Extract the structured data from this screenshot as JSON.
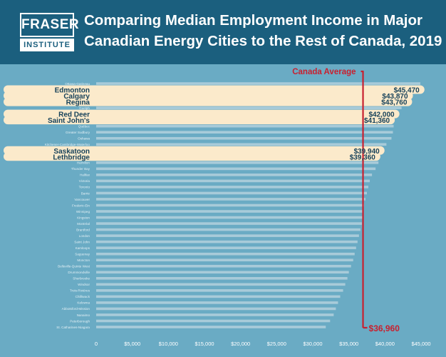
{
  "header": {
    "logo_top": "FRASER",
    "logo_bottom": "INSTITUTE",
    "title_line1": "Comparing Median Employment Income in Major",
    "title_line2": "Canadian Energy Cities to the Rest of Canada, 2019"
  },
  "colors": {
    "background": "#6aabc4",
    "header": "#1b5f7e",
    "highlight_bar": "#fbeacb",
    "plain_bar": "#a8cbd9",
    "average_line": "#c8202f",
    "value_text": "#17425a"
  },
  "chart_data": {
    "type": "bar",
    "orientation": "horizontal",
    "title": "Comparing Median Employment Income in Major Canadian Energy Cities to the Rest of Canada, 2019",
    "xlim": [
      0,
      45000
    ],
    "x_ticks": [
      "0",
      "$5,000",
      "$10,000",
      "$15,000",
      "$20,000",
      "$25,000",
      "$30,000",
      "$35,000",
      "$40,000",
      "$45,000"
    ],
    "average": {
      "label": "Canada Average",
      "value": 36960,
      "value_label": "$36,960"
    },
    "grid": false,
    "bars": [
      {
        "name": "Ottawa-Gatineau",
        "value": 44900,
        "highlight": false
      },
      {
        "name": "Edmonton",
        "value": 45470,
        "highlight": true,
        "label": "$45,470"
      },
      {
        "name": "Calgary",
        "value": 43870,
        "highlight": true,
        "label": "$43,870"
      },
      {
        "name": "Regina",
        "value": 43760,
        "highlight": true,
        "label": "$43,760"
      },
      {
        "name": "Guelph",
        "value": 42300,
        "highlight": false
      },
      {
        "name": "Red Deer",
        "value": 42000,
        "highlight": true,
        "label": "$42,000"
      },
      {
        "name": "Saint John's",
        "value": 41360,
        "highlight": true,
        "label": "$41,360"
      },
      {
        "name": "Québec",
        "value": 41200,
        "highlight": false
      },
      {
        "name": "Greater Sudbury",
        "value": 41100,
        "highlight": false
      },
      {
        "name": "Oshawa",
        "value": 40900,
        "highlight": false
      },
      {
        "name": "Kitchener-Cambridge-Waterloo",
        "value": 40200,
        "highlight": false
      },
      {
        "name": "Saskatoon",
        "value": 39940,
        "highlight": true,
        "label": "$39,940"
      },
      {
        "name": "Lethbridge",
        "value": 39360,
        "highlight": true,
        "label": "$39,360"
      },
      {
        "name": "Hamilton",
        "value": 39100,
        "highlight": false
      },
      {
        "name": "Thunder Bay",
        "value": 38700,
        "highlight": false
      },
      {
        "name": "Halifax",
        "value": 38200,
        "highlight": false
      },
      {
        "name": "Victoria",
        "value": 37900,
        "highlight": false
      },
      {
        "name": "Toronto",
        "value": 37700,
        "highlight": false
      },
      {
        "name": "Barrie",
        "value": 37500,
        "highlight": false
      },
      {
        "name": "Vancouver",
        "value": 37300,
        "highlight": false
      },
      {
        "name": "Frederic-Ein",
        "value": 37100,
        "highlight": false
      },
      {
        "name": "Winnipeg",
        "value": 37000,
        "highlight": false
      },
      {
        "name": "Kingston",
        "value": 36900,
        "highlight": false
      },
      {
        "name": "Montréal",
        "value": 36800,
        "highlight": false
      },
      {
        "name": "Brantford",
        "value": 36600,
        "highlight": false
      },
      {
        "name": "London",
        "value": 36400,
        "highlight": false
      },
      {
        "name": "Saint John",
        "value": 36200,
        "highlight": false
      },
      {
        "name": "Kamloops",
        "value": 36000,
        "highlight": false
      },
      {
        "name": "Saguenay",
        "value": 35800,
        "highlight": false
      },
      {
        "name": "Moncton",
        "value": 35600,
        "highlight": false
      },
      {
        "name": "Belleville-Quinte West",
        "value": 35300,
        "highlight": false
      },
      {
        "name": "Drummondville",
        "value": 35000,
        "highlight": false
      },
      {
        "name": "Sherbrooke",
        "value": 34800,
        "highlight": false
      },
      {
        "name": "Windsor",
        "value": 34500,
        "highlight": false
      },
      {
        "name": "Trois-Rivières",
        "value": 34200,
        "highlight": false
      },
      {
        "name": "Chilliwack",
        "value": 33800,
        "highlight": false
      },
      {
        "name": "Kelowna",
        "value": 33500,
        "highlight": false
      },
      {
        "name": "Abbotsford-Mission",
        "value": 33200,
        "highlight": false
      },
      {
        "name": "Nanaimo",
        "value": 32900,
        "highlight": false
      },
      {
        "name": "Peterborough",
        "value": 32400,
        "highlight": false
      },
      {
        "name": "St. Catharines-Niagara",
        "value": 31800,
        "highlight": false
      }
    ]
  }
}
